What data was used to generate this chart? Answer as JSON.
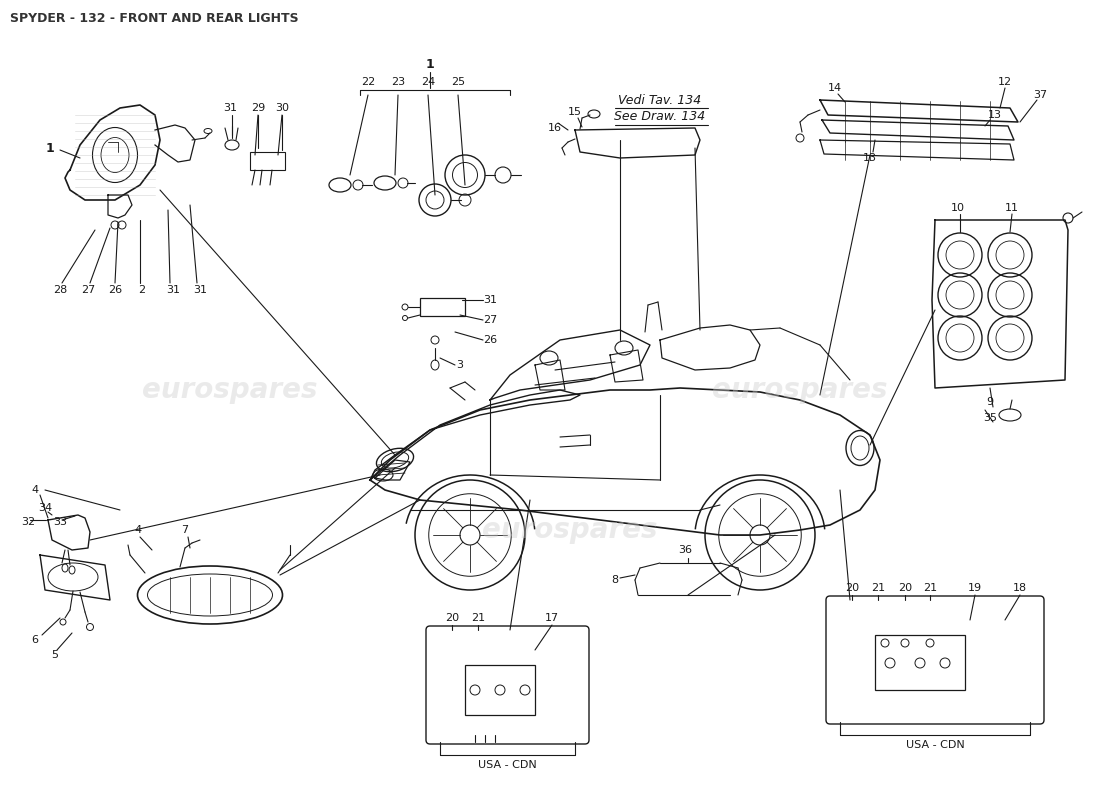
{
  "title": "SPYDER - 132 - FRONT AND REAR LIGHTS",
  "title_fontsize": 9,
  "background_color": "#ffffff",
  "line_color": "#1a1a1a",
  "watermark_color": "#cccccc",
  "watermark_text": "eurospares",
  "vedi_tav_text": "Vedi Tav. 134",
  "see_draw_text": "See Draw. 134",
  "usa_cdn_text": "USA - CDN"
}
